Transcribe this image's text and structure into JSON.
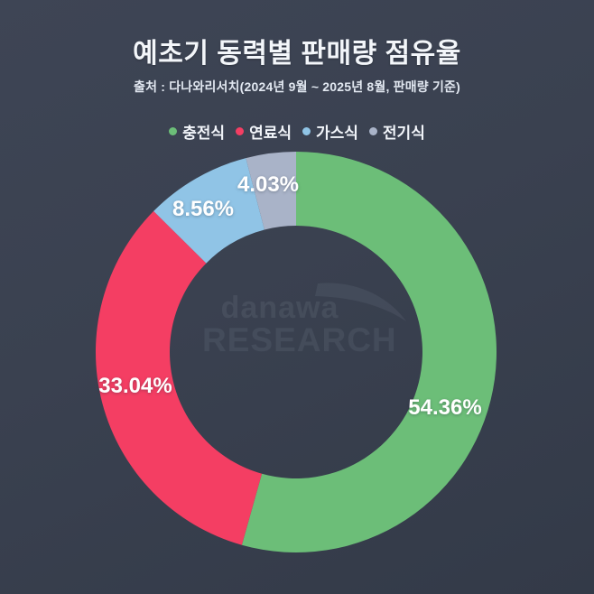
{
  "header": {
    "title": "예초기 동력별 판매량 점유율",
    "source": "출처 : 다나와리서치(2024년 9월 ~ 2025년 8월, 판매량 기준)"
  },
  "watermark": {
    "brand": "danawa",
    "sub": "RESEARCH"
  },
  "colors": {
    "background_top": "#3e4555",
    "background_bottom": "#333a48",
    "text_primary": "#f3f6fa",
    "label_text": "#ffffff"
  },
  "chart_data": {
    "type": "pie",
    "variant": "donut",
    "title": "예초기 동력별 판매량 점유율",
    "categories": [
      "충전식",
      "연료식",
      "가스식",
      "전기식"
    ],
    "values": [
      54.36,
      33.04,
      8.56,
      4.03
    ],
    "value_labels": [
      "54.36%",
      "33.04%",
      "8.56%",
      "4.03%"
    ],
    "colors": [
      "#6cbe78",
      "#f43e63",
      "#90c4e6",
      "#a9b3c8"
    ],
    "unit": "%",
    "start_angle_deg": 0,
    "direction": "clockwise",
    "inner_radius_ratio": 0.63,
    "legend_position": "top",
    "legend": [
      "충전식",
      "연료식",
      "가스식",
      "전기식"
    ]
  }
}
